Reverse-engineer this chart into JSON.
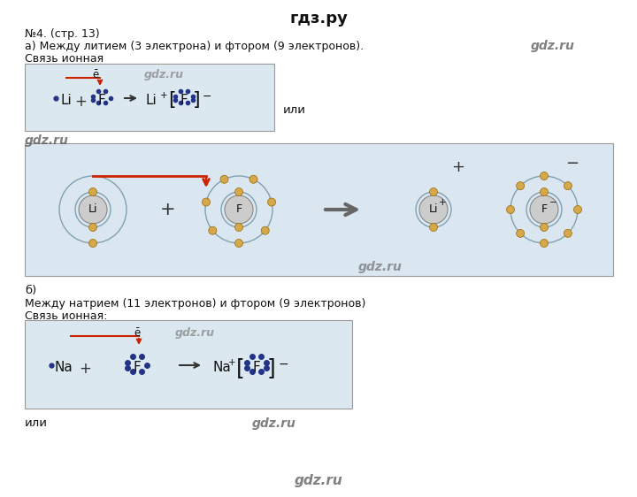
{
  "title": "гдз.ру",
  "text_line1": "№4. (стр. 13)",
  "text_line2": "а) Между литием (3 электрона) и фтором (9 электронов).",
  "text_line3": "Связь ионная",
  "text_b": "б)",
  "text_line4": "Между натрием (11 электронов) и фтором (9 электронов)",
  "text_line5": "Связь ионная:",
  "text_ili1": "или",
  "text_ili2": "или",
  "bg_color": "#ffffff",
  "box1_color": "#dce8f0",
  "box2_color": "#dae6f0",
  "box3_color": "#dce8f0",
  "atom_fill": "#cccccc",
  "electron_color": "#d4a84b",
  "electron_dark": "#223388",
  "red_color": "#cc2200",
  "orbit_color": "#7799aa"
}
